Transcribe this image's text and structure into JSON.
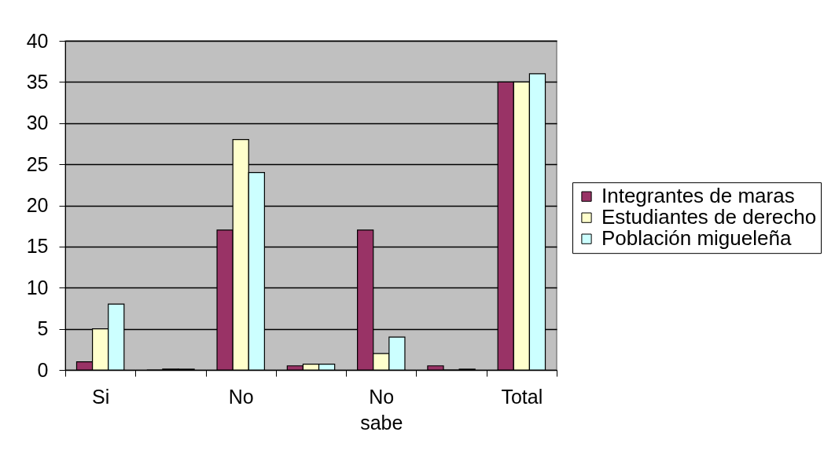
{
  "chart_data": {
    "type": "bar",
    "categories": [
      "Si",
      null,
      "No",
      null,
      "No sabe",
      null,
      "Total"
    ],
    "series": [
      {
        "name": "Integrantes de maras",
        "color": "#993366",
        "values": [
          1,
          0,
          17,
          0.5,
          17,
          0.5,
          35
        ]
      },
      {
        "name": "Estudiantes de derecho",
        "color": "#ffffcc",
        "values": [
          5,
          0.1,
          28,
          0.7,
          2,
          0,
          35
        ]
      },
      {
        "name": "Población migueleña",
        "color": "#ccffff",
        "values": [
          8,
          0.1,
          24,
          0.7,
          4,
          0.1,
          36
        ]
      }
    ],
    "ylim": [
      0,
      40
    ],
    "yticks": [
      0,
      5,
      10,
      15,
      20,
      25,
      30,
      35,
      40
    ],
    "grid": "y",
    "legend": "right"
  }
}
